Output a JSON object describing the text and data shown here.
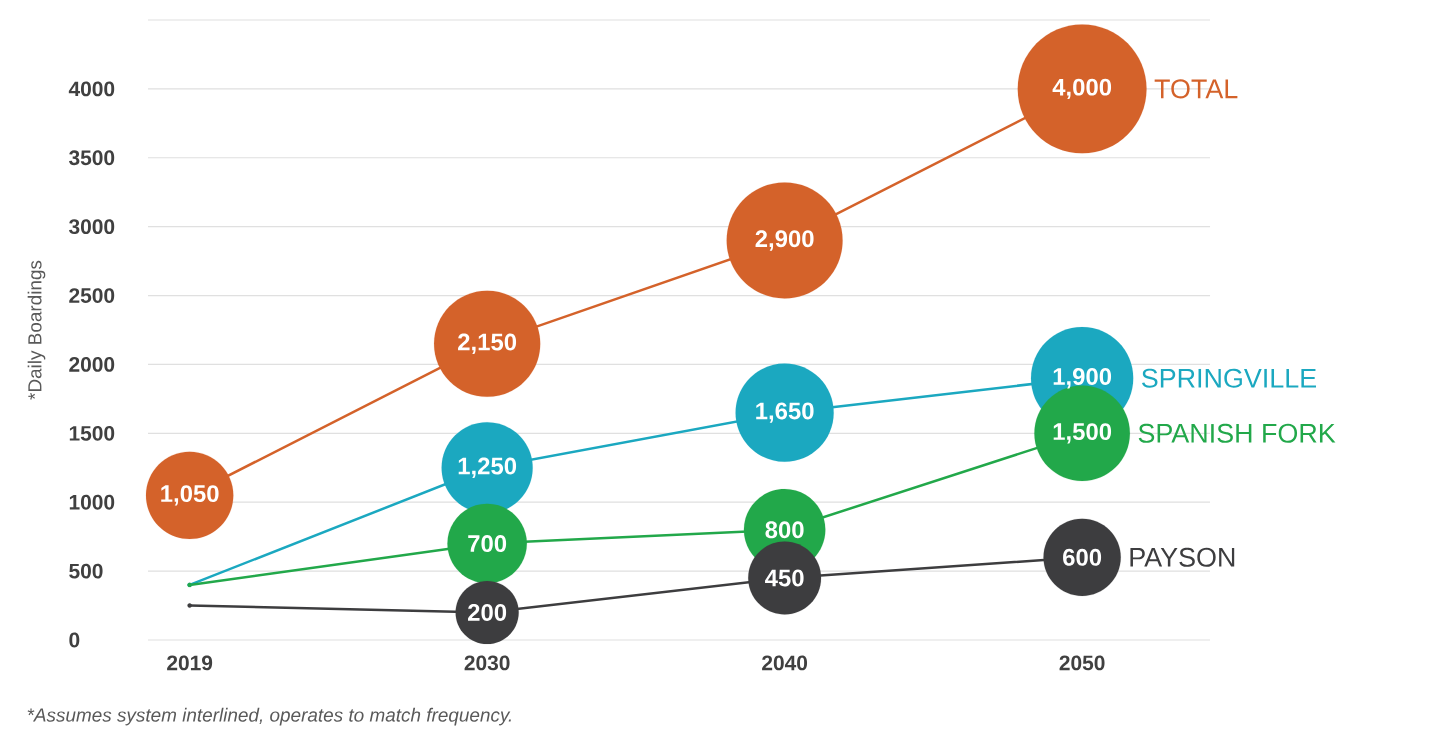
{
  "chart_data": {
    "type": "bubble",
    "ylabel": "*Daily Boardings",
    "categories": [
      "2019",
      "2030",
      "2040",
      "2050"
    ],
    "series": [
      {
        "name": "TOTAL",
        "color": "#d4622a",
        "values": [
          1050,
          2150,
          2900,
          4000
        ],
        "sizes": [
          0.46,
          0.68,
          0.81,
          1
        ],
        "value_labels": [
          "1,050",
          "2,150",
          "2,900",
          "4,000"
        ]
      },
      {
        "name": "SPRINGVILLE",
        "color": "#1ba8c0",
        "values": [
          400,
          1250,
          1650,
          1900
        ],
        "sizes": [
          null,
          0.5,
          0.58,
          0.63
        ],
        "value_labels": [
          null,
          "1,250",
          "1,650",
          "1,900"
        ]
      },
      {
        "name": "SPANISH FORK",
        "color": "#22a84a",
        "values": [
          400,
          700,
          800,
          1500
        ],
        "sizes": [
          null,
          0.38,
          0.4,
          0.55
        ],
        "value_labels": [
          null,
          "700",
          "800",
          "1,500"
        ]
      },
      {
        "name": "PAYSON",
        "color": "#3d3d3f",
        "values": [
          250,
          200,
          450,
          600
        ],
        "sizes": [
          null,
          0.24,
          0.32,
          0.36
        ],
        "value_labels": [
          null,
          "200",
          "450",
          "600"
        ]
      }
    ],
    "ylim": [
      0,
      4500
    ],
    "yticks": [
      0,
      500,
      1000,
      1500,
      2000,
      2500,
      3000,
      3500,
      4000,
      {
        "value": 4500,
        "label": null
      }
    ],
    "grid": "y",
    "legend": "right",
    "line_style": "solid",
    "annotations": [
      "*Assumes system interlined, operates to match frequency."
    ]
  }
}
